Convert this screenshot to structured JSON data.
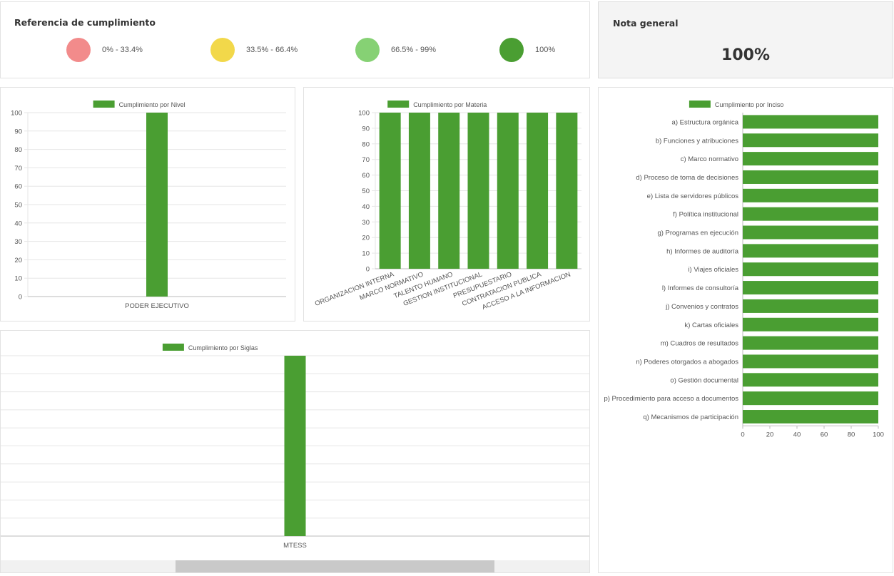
{
  "referencia": {
    "title": "Referencia de cumplimiento",
    "items": [
      {
        "label": "0% - 33.4%",
        "color": "#f28b8b"
      },
      {
        "label": "33.5% - 66.4%",
        "color": "#f2d84a"
      },
      {
        "label": "66.5% - 99%",
        "color": "#86d174"
      },
      {
        "label": "100%",
        "color": "#4a9e32"
      }
    ]
  },
  "nota": {
    "title": "Nota general",
    "value": "100%"
  },
  "colors": {
    "bar": "#4a9e32",
    "grid": "#e6e6e6",
    "axis": "#bbbbbb",
    "text": "#555555"
  },
  "chart_data": [
    {
      "type": "bar",
      "title": "",
      "legend": "Cumplimiento por Nivel",
      "categories": [
        "PODER EJECUTIVO"
      ],
      "series": [
        {
          "name": "Cumplimiento por Nivel",
          "values": [
            100
          ]
        }
      ],
      "ylim": [
        0,
        100
      ],
      "yticks": [
        0,
        10,
        20,
        30,
        40,
        50,
        60,
        70,
        80,
        90,
        100
      ],
      "grid": true,
      "legend_position": "top"
    },
    {
      "type": "bar",
      "title": "",
      "legend": "Cumplimiento por Materia",
      "categories": [
        "ORGANIZACION INTERNA",
        "MARCO NORMATIVO",
        "TALENTO HUMANO",
        "GESTION INSTITUCIONAL",
        "PRESUPUESTARIO",
        "CONTRATACION PUBLICA",
        "ACCESO A LA INFORMACION"
      ],
      "series": [
        {
          "name": "Cumplimiento por Materia",
          "values": [
            100,
            100,
            100,
            100,
            100,
            100,
            100
          ]
        }
      ],
      "ylim": [
        0,
        100
      ],
      "yticks": [
        0,
        10,
        20,
        30,
        40,
        50,
        60,
        70,
        80,
        90,
        100
      ],
      "grid": true,
      "legend_position": "top"
    },
    {
      "type": "bar",
      "title": "",
      "legend": "Cumplimiento por Siglas",
      "categories": [
        "MTESS"
      ],
      "series": [
        {
          "name": "Cumplimiento por Siglas",
          "values": [
            100
          ]
        }
      ],
      "ylim": [
        0,
        100
      ],
      "grid": true,
      "legend_position": "top"
    },
    {
      "type": "bar",
      "orientation": "horizontal",
      "title": "",
      "legend": "Cumplimiento por Inciso",
      "categories": [
        "a) Estructura orgánica",
        "b) Funciones y atribuciones",
        "c) Marco normativo",
        "d) Proceso de toma de decisiones",
        "e) Lista de servidores públicos",
        "f) Política institucional",
        "g) Programas en ejecución",
        "h) Informes de auditoría",
        "i) Viajes oficiales",
        "l) Informes de consultoría",
        "j) Convenios y contratos",
        "k) Cartas oficiales",
        "m)  Cuadros de resultados",
        "n)  Poderes otorgados a abogados",
        "o) Gestión documental",
        "p) Procedimiento para acceso a documentos",
        "q) Mecanismos de participación"
      ],
      "series": [
        {
          "name": "Cumplimiento por Inciso",
          "values": [
            100,
            100,
            100,
            100,
            100,
            100,
            100,
            100,
            100,
            100,
            100,
            100,
            100,
            100,
            100,
            100,
            100
          ]
        }
      ],
      "xlim": [
        0,
        100
      ],
      "xticks": [
        0,
        20,
        40,
        60,
        80,
        100
      ],
      "grid": false,
      "legend_position": "top"
    }
  ]
}
